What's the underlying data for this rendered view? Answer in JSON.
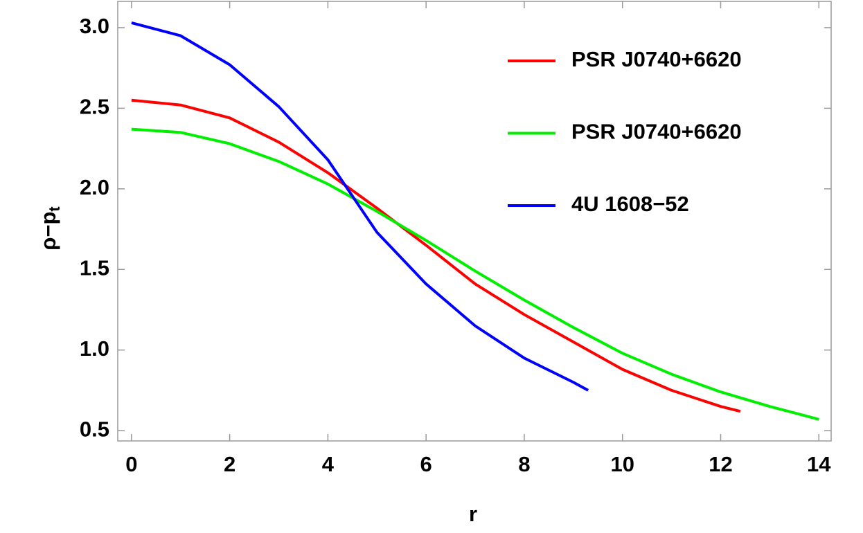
{
  "chart_data": {
    "type": "line",
    "x_label": "r",
    "y_label": "ρ−p",
    "y_label_subscript": "t",
    "xlim": [
      -0.28,
      14.25
    ],
    "ylim": [
      0.436,
      3.163
    ],
    "xticks": [
      0,
      2,
      4,
      6,
      8,
      10,
      12,
      14
    ],
    "yticks": [
      {
        "value": 0.5,
        "label": "0.5"
      },
      {
        "value": 1,
        "label": "1.0"
      },
      {
        "value": 1.5,
        "label": "1.5"
      },
      {
        "value": 2,
        "label": "2.0"
      },
      {
        "value": 2.5,
        "label": "2.5"
      },
      {
        "value": 3,
        "label": "3.0"
      }
    ],
    "legend": "upper right",
    "series": [
      {
        "name": "PSR J0740+6620",
        "color": "#ff0000",
        "x": [
          0,
          1,
          2,
          3,
          4,
          5,
          6,
          7,
          8,
          9,
          10,
          11,
          12,
          12.4
        ],
        "values": [
          2.55,
          2.52,
          2.44,
          2.29,
          2.1,
          1.88,
          1.65,
          1.41,
          1.22,
          1.05,
          0.88,
          0.75,
          0.65,
          0.62
        ]
      },
      {
        "name": "PSR J0740+6620",
        "color": "#00ee00",
        "x": [
          0,
          1,
          2,
          3,
          4,
          5,
          6,
          7,
          8,
          9,
          10,
          11,
          12,
          13,
          14
        ],
        "values": [
          2.37,
          2.35,
          2.28,
          2.17,
          2.03,
          1.86,
          1.68,
          1.49,
          1.31,
          1.14,
          0.98,
          0.85,
          0.74,
          0.65,
          0.57
        ]
      },
      {
        "name": "4U 1608−52",
        "color": "#0000ff",
        "x": [
          0,
          1,
          2,
          3,
          4,
          5,
          6,
          7,
          8,
          9,
          9.3
        ],
        "values": [
          3.03,
          2.95,
          2.77,
          2.51,
          2.18,
          1.73,
          1.41,
          1.15,
          0.95,
          0.8,
          0.75
        ]
      }
    ]
  }
}
